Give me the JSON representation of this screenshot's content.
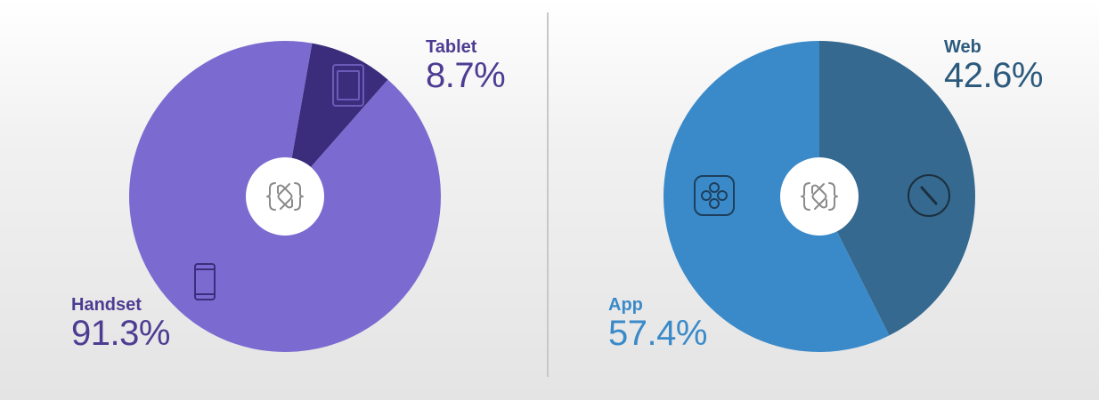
{
  "chart_data": [
    {
      "type": "pie",
      "donut": true,
      "slices": [
        {
          "label": "Tablet",
          "value": 8.7,
          "display": "8.7%",
          "color": "#3c2d7c",
          "icon": "tablet-icon"
        },
        {
          "label": "Handset",
          "value": 91.3,
          "display": "91.3%",
          "color": "#7b6bd1",
          "icon": "handset-icon"
        }
      ],
      "label_color": "#4d3c92",
      "center_icon": "app-logo-icon"
    },
    {
      "type": "pie",
      "donut": true,
      "slices": [
        {
          "label": "Web",
          "value": 42.6,
          "display": "42.6%",
          "color": "#35698f",
          "icon": "compass-icon"
        },
        {
          "label": "App",
          "value": 57.4,
          "display": "57.4%",
          "color": "#3a8ac9",
          "icon": "app-icon"
        }
      ],
      "label_color_by_slice": [
        "#2c5a7d",
        "#3a8ac9"
      ],
      "center_icon": "app-logo-icon"
    }
  ],
  "divider_color": "#c8c8c8"
}
